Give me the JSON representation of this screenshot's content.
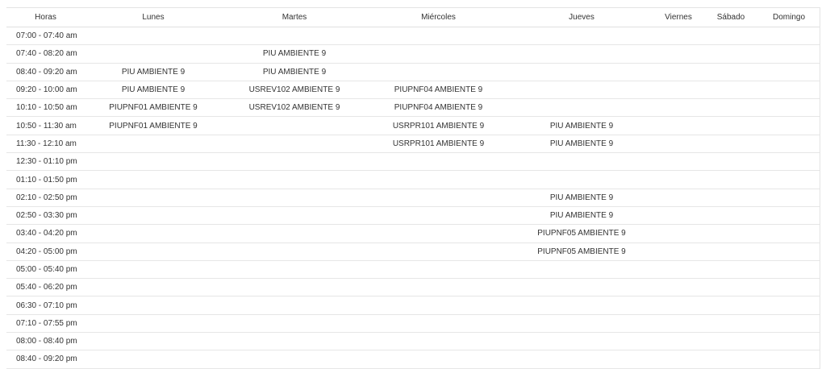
{
  "schedule": {
    "headers": [
      "Horas",
      "Lunes",
      "Martes",
      "Miércoles",
      "Jueves",
      "Viernes",
      "Sábado",
      "Domingo"
    ],
    "rows": [
      [
        "07:00 - 07:40 am",
        "",
        "",
        "",
        "",
        "",
        "",
        ""
      ],
      [
        "07:40 - 08:20 am",
        "",
        "PIU AMBIENTE 9",
        "",
        "",
        "",
        "",
        ""
      ],
      [
        "08:40 - 09:20 am",
        "PIU AMBIENTE 9",
        "PIU AMBIENTE 9",
        "",
        "",
        "",
        "",
        ""
      ],
      [
        "09:20 - 10:00 am",
        "PIU AMBIENTE 9",
        "USREV102 AMBIENTE 9",
        "PIUPNF04 AMBIENTE 9",
        "",
        "",
        "",
        ""
      ],
      [
        "10:10 - 10:50 am",
        "PIUPNF01 AMBIENTE 9",
        "USREV102 AMBIENTE 9",
        "PIUPNF04 AMBIENTE 9",
        "",
        "",
        "",
        ""
      ],
      [
        "10:50 - 11:30 am",
        "PIUPNF01 AMBIENTE 9",
        "",
        "USRPR101 AMBIENTE 9",
        "PIU AMBIENTE 9",
        "",
        "",
        ""
      ],
      [
        "11:30 - 12:10 am",
        "",
        "",
        "USRPR101 AMBIENTE 9",
        "PIU AMBIENTE 9",
        "",
        "",
        ""
      ],
      [
        "12:30 - 01:10 pm",
        "",
        "",
        "",
        "",
        "",
        "",
        ""
      ],
      [
        "01:10 - 01:50 pm",
        "",
        "",
        "",
        "",
        "",
        "",
        ""
      ],
      [
        "02:10 - 02:50 pm",
        "",
        "",
        "",
        "PIU AMBIENTE 9",
        "",
        "",
        ""
      ],
      [
        "02:50 - 03:30 pm",
        "",
        "",
        "",
        "PIU AMBIENTE 9",
        "",
        "",
        ""
      ],
      [
        "03:40 - 04:20 pm",
        "",
        "",
        "",
        "PIUPNF05 AMBIENTE 9",
        "",
        "",
        ""
      ],
      [
        "04:20 - 05:00 pm",
        "",
        "",
        "",
        "PIUPNF05 AMBIENTE 9",
        "",
        "",
        ""
      ],
      [
        "05:00 - 05:40 pm",
        "",
        "",
        "",
        "",
        "",
        "",
        ""
      ],
      [
        "05:40 - 06:20 pm",
        "",
        "",
        "",
        "",
        "",
        "",
        ""
      ],
      [
        "06:30 - 07:10 pm",
        "",
        "",
        "",
        "",
        "",
        "",
        ""
      ],
      [
        "07:10 - 07:55 pm",
        "",
        "",
        "",
        "",
        "",
        "",
        ""
      ],
      [
        "08:00 - 08:40 pm",
        "",
        "",
        "",
        "",
        "",
        "",
        ""
      ],
      [
        "08:40 - 09:20 pm",
        "",
        "",
        "",
        "",
        "",
        "",
        ""
      ]
    ]
  }
}
